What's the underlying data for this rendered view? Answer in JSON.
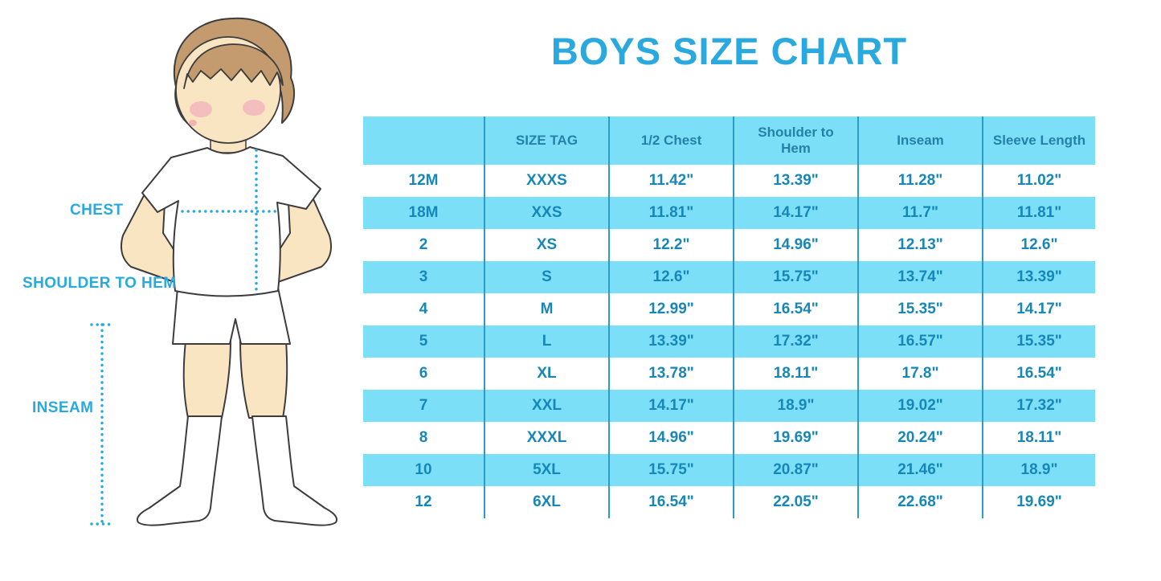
{
  "title": "BOYS SIZE CHART",
  "figure_labels": {
    "chest": "CHEST",
    "shoulder_to_hem": "SHOULDER TO HEM",
    "inseam": "INSEAM"
  },
  "colors": {
    "accent_blue": "#29a9de",
    "stripe_blue": "#7cdff8",
    "separator_blue": "#2e9bc5",
    "cell_text_blue": "#1787ba",
    "header_text_blue": "#2581aa",
    "skin": "#fae5c3",
    "hair": "#c39b6e",
    "blush": "#f3a9bc",
    "outline": "#3d3d3d"
  },
  "chart_data": {
    "type": "table",
    "title": "BOYS SIZE CHART",
    "columns": [
      "",
      "SIZE TAG",
      "1/2 Chest",
      "Shoulder to Hem",
      "Inseam",
      "Sleeve Length"
    ],
    "columns_display": [
      "",
      "SIZE TAG",
      "1/2 Chest",
      "Shoulder to\nHem",
      "Inseam",
      "Sleeve Length"
    ],
    "rows": [
      [
        "12M",
        "XXXS",
        "11.42\"",
        "13.39\"",
        "11.28\"",
        "11.02\""
      ],
      [
        "18M",
        "XXS",
        "11.81\"",
        "14.17\"",
        "11.7\"",
        "11.81\""
      ],
      [
        "2",
        "XS",
        "12.2\"",
        "14.96\"",
        "12.13\"",
        "12.6\""
      ],
      [
        "3",
        "S",
        "12.6\"",
        "15.75\"",
        "13.74\"",
        "13.39\""
      ],
      [
        "4",
        "M",
        "12.99\"",
        "16.54\"",
        "15.35\"",
        "14.17\""
      ],
      [
        "5",
        "L",
        "13.39\"",
        "17.32\"",
        "16.57\"",
        "15.35\""
      ],
      [
        "6",
        "XL",
        "13.78\"",
        "18.11\"",
        "17.8\"",
        "16.54\""
      ],
      [
        "7",
        "XXL",
        "14.17\"",
        "18.9\"",
        "19.02\"",
        "17.32\""
      ],
      [
        "8",
        "XXXL",
        "14.96\"",
        "19.69\"",
        "20.24\"",
        "18.11\""
      ],
      [
        "10",
        "5XL",
        "15.75\"",
        "20.87\"",
        "21.46\"",
        "18.9\""
      ],
      [
        "12",
        "6XL",
        "16.54\"",
        "22.05\"",
        "22.68\"",
        "19.69\""
      ]
    ],
    "striped_row_indices": [
      1,
      3,
      5,
      7,
      9
    ],
    "legend_position": "none",
    "grid": "vertical column separators only; alternating light-blue/white row stripes; light-blue header row"
  }
}
